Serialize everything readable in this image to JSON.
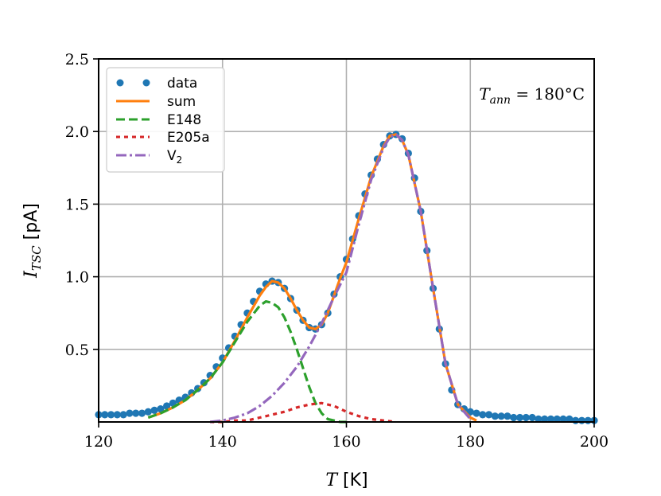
{
  "chart_data": {
    "type": "line",
    "title": "",
    "xlabel": {
      "main": "T",
      "unit": "[K]"
    },
    "ylabel": {
      "main": "I",
      "sub": "TSC",
      "unit": "[pA]"
    },
    "xlim": [
      120,
      200
    ],
    "ylim": [
      0,
      2.5
    ],
    "xticks": [
      120,
      140,
      160,
      180,
      200
    ],
    "xtick_labels": [
      "120",
      "140",
      "160",
      "180",
      "200"
    ],
    "yticks": [
      0.5,
      1.0,
      1.5,
      2.0,
      2.5
    ],
    "ytick_labels": [
      "0.5",
      "1.0",
      "1.5",
      "2.0",
      "2.5"
    ],
    "grid": true,
    "legend_position": "top-left",
    "annotation": {
      "main": "T",
      "sub": "ann",
      "rest": " = 180°C"
    },
    "series": [
      {
        "name": "data",
        "style": "markers",
        "color": "#1f77b4",
        "x": [
          120,
          121,
          122,
          123,
          124,
          125,
          126,
          127,
          128,
          129,
          130,
          131,
          132,
          133,
          134,
          135,
          136,
          137,
          138,
          139,
          140,
          141,
          142,
          143,
          144,
          145,
          146,
          147,
          148,
          149,
          150,
          151,
          152,
          153,
          154,
          155,
          156,
          157,
          158,
          159,
          160,
          161,
          162,
          163,
          164,
          165,
          166,
          167,
          168,
          169,
          170,
          171,
          172,
          173,
          174,
          175,
          176,
          177,
          178,
          179,
          180,
          181,
          182,
          183,
          184,
          185,
          186,
          187,
          188,
          189,
          190,
          191,
          192,
          193,
          194,
          195,
          196,
          197,
          198,
          199,
          200
        ],
        "y": [
          0.05,
          0.05,
          0.05,
          0.05,
          0.05,
          0.06,
          0.06,
          0.06,
          0.07,
          0.08,
          0.09,
          0.11,
          0.13,
          0.15,
          0.17,
          0.2,
          0.23,
          0.27,
          0.32,
          0.38,
          0.44,
          0.51,
          0.59,
          0.67,
          0.75,
          0.83,
          0.9,
          0.95,
          0.97,
          0.96,
          0.92,
          0.85,
          0.77,
          0.7,
          0.65,
          0.64,
          0.67,
          0.75,
          0.88,
          1.0,
          1.12,
          1.26,
          1.42,
          1.57,
          1.7,
          1.81,
          1.91,
          1.97,
          1.98,
          1.95,
          1.85,
          1.68,
          1.45,
          1.18,
          0.92,
          0.64,
          0.4,
          0.22,
          0.12,
          0.09,
          0.07,
          0.06,
          0.05,
          0.05,
          0.04,
          0.04,
          0.04,
          0.03,
          0.03,
          0.03,
          0.03,
          0.02,
          0.02,
          0.02,
          0.02,
          0.02,
          0.02,
          0.01,
          0.01,
          0.01,
          0.01
        ]
      },
      {
        "name": "sum",
        "style": "solid",
        "color": "#ff7f0e",
        "x": [
          128,
          130,
          132,
          134,
          136,
          138,
          140,
          142,
          144,
          146,
          147,
          148,
          149,
          150,
          151,
          152,
          153,
          154,
          155,
          156,
          157,
          158,
          159,
          160,
          162,
          164,
          166,
          167,
          168,
          169,
          170,
          172,
          174,
          176,
          178,
          180,
          181
        ],
        "y": [
          0.03,
          0.06,
          0.1,
          0.15,
          0.22,
          0.3,
          0.41,
          0.56,
          0.72,
          0.87,
          0.93,
          0.97,
          0.96,
          0.92,
          0.85,
          0.77,
          0.7,
          0.65,
          0.64,
          0.67,
          0.75,
          0.87,
          0.99,
          1.1,
          1.4,
          1.69,
          1.9,
          1.97,
          1.98,
          1.94,
          1.84,
          1.45,
          0.92,
          0.4,
          0.12,
          0.03,
          0.01
        ]
      },
      {
        "name": "E148",
        "style": "dashed",
        "color": "#2ca02c",
        "x": [
          128,
          130,
          132,
          134,
          136,
          138,
          140,
          142,
          144,
          146,
          147,
          148,
          149,
          150,
          151,
          152,
          153,
          154,
          155,
          156,
          157,
          158,
          159,
          160
        ],
        "y": [
          0.03,
          0.06,
          0.1,
          0.15,
          0.22,
          0.3,
          0.41,
          0.55,
          0.69,
          0.8,
          0.83,
          0.82,
          0.79,
          0.72,
          0.62,
          0.5,
          0.37,
          0.24,
          0.13,
          0.06,
          0.02,
          0.01,
          0.0,
          0.0
        ]
      },
      {
        "name": "E205a",
        "style": "dotted",
        "color": "#d62728",
        "x": [
          138,
          140,
          142,
          144,
          146,
          148,
          150,
          152,
          154,
          156,
          158,
          160,
          162,
          164,
          166,
          168
        ],
        "y": [
          0.0,
          0.0,
          0.01,
          0.01,
          0.03,
          0.05,
          0.07,
          0.1,
          0.12,
          0.13,
          0.11,
          0.07,
          0.04,
          0.02,
          0.01,
          0.0
        ]
      },
      {
        "name": "V",
        "name_sub": "2",
        "style": "dashdot",
        "color": "#9467bd",
        "x": [
          138,
          140,
          142,
          144,
          146,
          148,
          150,
          152,
          154,
          156,
          158,
          160,
          162,
          164,
          166,
          167,
          168,
          169,
          170,
          172,
          174,
          176,
          178,
          180
        ],
        "y": [
          0.0,
          0.01,
          0.03,
          0.06,
          0.11,
          0.18,
          0.27,
          0.38,
          0.52,
          0.68,
          0.86,
          1.03,
          1.36,
          1.67,
          1.89,
          1.96,
          1.98,
          1.94,
          1.84,
          1.45,
          0.92,
          0.4,
          0.12,
          0.02
        ]
      }
    ]
  }
}
